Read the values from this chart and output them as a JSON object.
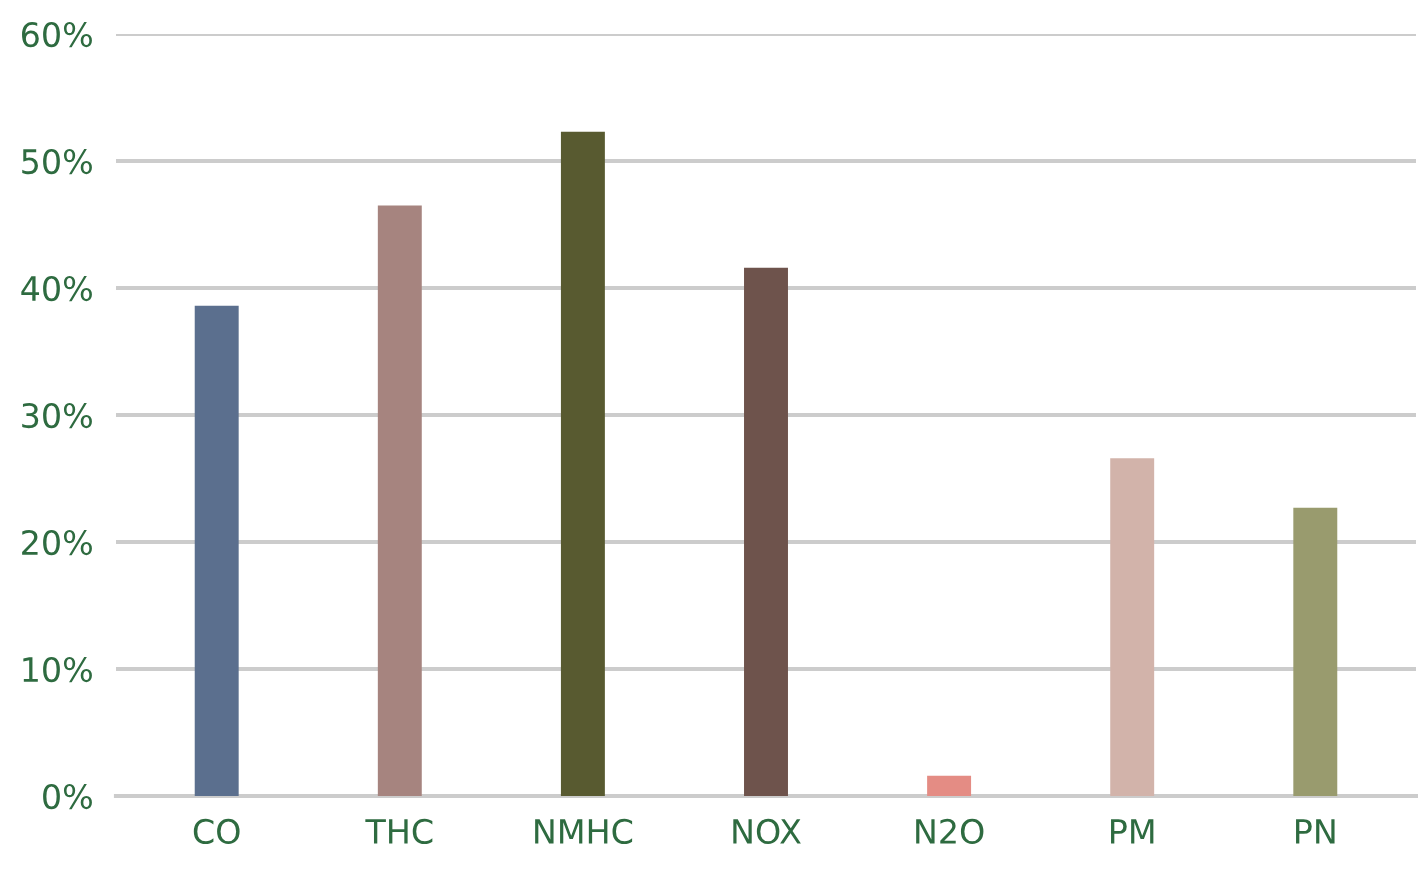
{
  "chart_data": {
    "type": "bar",
    "categories": [
      "CO",
      "THC",
      "NMHC",
      "NOX",
      "N2O",
      "PM",
      "PN"
    ],
    "values": [
      38.6,
      46.5,
      52.3,
      41.6,
      1.6,
      26.6,
      22.7
    ],
    "colors": [
      "#5b6f8e",
      "#a6847f",
      "#585a30",
      "#6e534c",
      "#e48c84",
      "#d2b3aa",
      "#999b6e"
    ],
    "ylim": [
      0,
      60
    ],
    "yticks": [
      {
        "value": 0,
        "label": "0%"
      },
      {
        "value": 10,
        "label": "10%"
      },
      {
        "value": 20,
        "label": "20%"
      },
      {
        "value": 30,
        "label": "30%"
      },
      {
        "value": 40,
        "label": "40%"
      },
      {
        "value": 50,
        "label": "50%"
      },
      {
        "value": 60,
        "label": "60%"
      }
    ],
    "grid": "y",
    "legend": false
  }
}
